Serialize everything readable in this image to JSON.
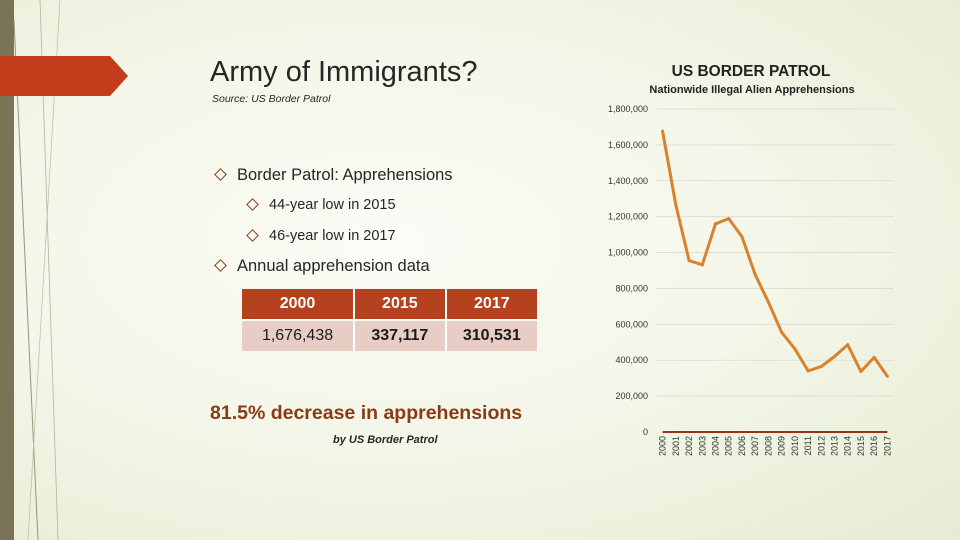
{
  "slide": {
    "title": "Army of Immigrants?",
    "source": "Source: US Border Patrol",
    "bullets": {
      "b1": "Border Patrol: Apprehensions",
      "b2": "44-year low in 2015",
      "b3": "46-year low in 2017",
      "b4": "Annual apprehension data"
    },
    "table": {
      "headers": [
        "2000",
        "2015",
        "2017"
      ],
      "values": [
        "1,676,438",
        "337,117",
        "310,531"
      ]
    },
    "decrease": "81.5% decrease in apprehensions",
    "by_note": "by US Border Patrol"
  },
  "colors": {
    "accent": "#b5411f",
    "line": "#d9822b",
    "strip": "#7a7358"
  },
  "chart_data": {
    "type": "line",
    "title": "US BORDER PATROL",
    "subtitle": "Nationwide Illegal Alien Apprehensions",
    "x": [
      "2000",
      "2001",
      "2002",
      "2003",
      "2004",
      "2005",
      "2006",
      "2007",
      "2008",
      "2009",
      "2010",
      "2011",
      "2012",
      "2013",
      "2014",
      "2015",
      "2016",
      "2017"
    ],
    "series": [
      {
        "values": [
          1676438,
          1266214,
          955310,
          931557,
          1160395,
          1189075,
          1089092,
          876704,
          723825,
          556041,
          463382,
          340252,
          364768,
          420789,
          486651,
          337117,
          415816,
          310531
        ]
      }
    ],
    "ylim": [
      0,
      1800000
    ],
    "yticks": [
      "0",
      "200,000",
      "400,000",
      "600,000",
      "800,000",
      "1,000,000",
      "1,200,000",
      "1,400,000",
      "1,600,000",
      "1,800,000"
    ],
    "grid": true,
    "xlabel": "",
    "ylabel": ""
  }
}
